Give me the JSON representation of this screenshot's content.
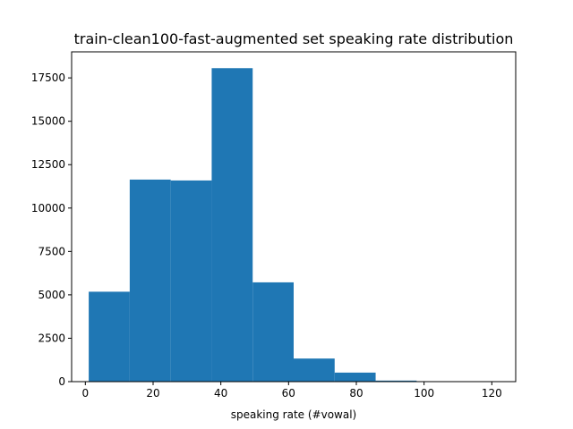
{
  "chart_data": {
    "type": "bar",
    "title": "train-clean100-fast-augmented set speaking rate distribution",
    "xlabel": "speaking rate (#vowal)",
    "ylabel": "",
    "bin_edges": [
      1,
      13.1,
      25.2,
      37.3,
      49.4,
      61.5,
      73.6,
      85.7,
      97.8,
      109.9,
      122
    ],
    "values": [
      5180,
      11640,
      11590,
      18060,
      5720,
      1330,
      520,
      60,
      10,
      4
    ],
    "xlim": [
      -4.05,
      127.05
    ],
    "ylim": [
      0,
      19000
    ],
    "xticks": [
      0,
      20,
      40,
      60,
      80,
      100,
      120
    ],
    "xtick_labels": [
      "0",
      "20",
      "40",
      "60",
      "80",
      "100",
      "120"
    ],
    "yticks": [
      0,
      2500,
      5000,
      7500,
      10000,
      12500,
      15000,
      17500
    ],
    "ytick_labels": [
      "0",
      "2500",
      "5000",
      "7500",
      "10000",
      "12500",
      "15000",
      "17500"
    ],
    "bar_color": "#1f77b4",
    "grid": false,
    "legend": "none"
  }
}
